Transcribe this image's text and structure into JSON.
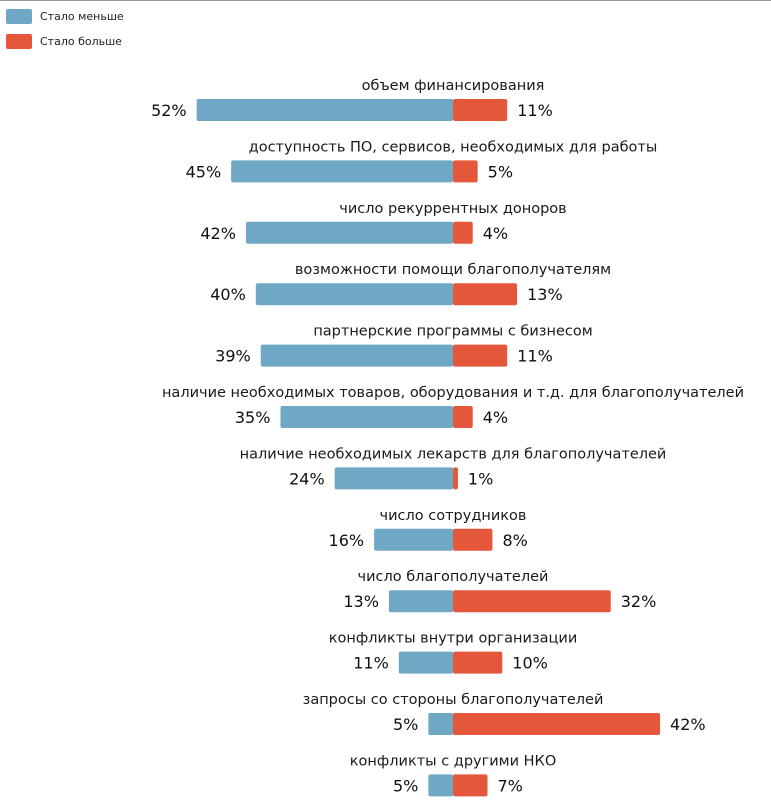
{
  "legend": {
    "less_label": "Стало меньше",
    "more_label": "Стало больше"
  },
  "colors": {
    "less": "#6fa8c4",
    "more": "#e5573a"
  },
  "chart_data": {
    "type": "bar",
    "orientation": "horizontal-diverging",
    "unit": "%",
    "categories": [
      "объем финансирования",
      "доступность ПО, сервисов, необходимых для работы",
      "число рекуррентных доноров",
      "возможности помощи благополучателям",
      "партнерские программы с бизнесом",
      "наличие необходимых товаров, оборудования и т.д. для благополучателей",
      "наличие необходимых лекарств для благополучателей",
      "число сотрудников",
      "число благополучателей",
      "конфликты внутри организации",
      "запросы со стороны благополучателей",
      "конфликты с другими НКО"
    ],
    "series": [
      {
        "name": "Стало меньше",
        "values": [
          52,
          45,
          42,
          40,
          39,
          35,
          24,
          16,
          13,
          11,
          5,
          5
        ]
      },
      {
        "name": "Стало больше",
        "values": [
          11,
          5,
          4,
          13,
          11,
          4,
          1,
          8,
          32,
          10,
          42,
          7
        ]
      }
    ],
    "legend_position": "top-left",
    "grid": false
  }
}
